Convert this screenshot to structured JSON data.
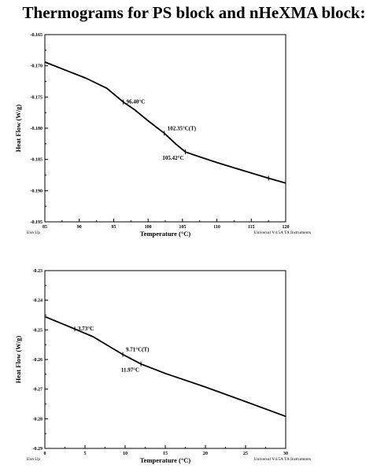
{
  "page_title": "Thermograms for PS block and nHeXMA block:",
  "chart_data": [
    {
      "type": "line",
      "title": "",
      "xlabel": "Temperature (°C)",
      "ylabel": "Heat Flow (W/g)",
      "xlim": [
        85,
        120
      ],
      "ylim": [
        -0.195,
        -0.165
      ],
      "x_ticks": [
        "85",
        "90",
        "95",
        "100",
        "105",
        "110",
        "115",
        "120"
      ],
      "y_ticks": [
        "-0.165",
        "-0.170",
        "-0.175",
        "-0.180",
        "-0.185",
        "-0.190",
        "-0.195"
      ],
      "grid": false,
      "corner_left": "Exo Up",
      "corner_right": "Universal V4.5A TA Instruments",
      "series": [
        {
          "x": [
            85,
            88,
            91,
            94,
            96.4,
            98,
            100,
            102.35,
            104,
            105.42,
            107,
            110,
            113,
            117.5,
            120
          ],
          "y": [
            -0.1694,
            -0.1707,
            -0.172,
            -0.1736,
            -0.1758,
            -0.177,
            -0.1788,
            -0.1808,
            -0.1825,
            -0.1838,
            -0.1844,
            -0.1855,
            -0.1865,
            -0.188,
            -0.1888
          ]
        }
      ],
      "annotations": [
        {
          "text": "96.40°C",
          "x": 96.4,
          "y": -0.1758,
          "side": "right"
        },
        {
          "text": "102.35°C(T)",
          "x": 102.35,
          "y": -0.1808,
          "side": "right-up"
        },
        {
          "text": "105.42°C",
          "x": 105.42,
          "y": -0.1838,
          "side": "left-down"
        }
      ],
      "markers": [
        {
          "x": 96.4,
          "y": -0.1758
        },
        {
          "x": 102.35,
          "y": -0.1808
        },
        {
          "x": 105.42,
          "y": -0.1838
        },
        {
          "x": 117.5,
          "y": -0.188
        }
      ]
    },
    {
      "type": "line",
      "title": "",
      "xlabel": "Temperature (°C)",
      "ylabel": "Heat Flow (W/g)",
      "xlim": [
        0,
        30
      ],
      "ylim": [
        -0.29,
        -0.23
      ],
      "x_ticks": [
        "0",
        "5",
        "10",
        "15",
        "20",
        "25",
        "30"
      ],
      "y_ticks": [
        "-0.23",
        "-0.24",
        "-0.25",
        "-0.26",
        "-0.27",
        "-0.28",
        "-0.29"
      ],
      "grid": false,
      "corner_left": "Exo Up",
      "corner_right": "Universal V4.5A TA Instruments",
      "series": [
        {
          "x": [
            0,
            3.73,
            6,
            9.71,
            11.97,
            15,
            20,
            25,
            30
          ],
          "y": [
            -0.2455,
            -0.2497,
            -0.2523,
            -0.2583,
            -0.2615,
            -0.2647,
            -0.2693,
            -0.2742,
            -0.2792
          ]
        }
      ],
      "annotations": [
        {
          "text": "3.73°C",
          "x": 3.73,
          "y": -0.2497,
          "side": "right"
        },
        {
          "text": "9.71°C(T)",
          "x": 9.71,
          "y": -0.2583,
          "side": "right-up"
        },
        {
          "text": "11.97°C",
          "x": 11.97,
          "y": -0.2615,
          "side": "left-down"
        }
      ],
      "markers": [
        {
          "x": 3.73,
          "y": -0.2497
        },
        {
          "x": 9.71,
          "y": -0.2583
        },
        {
          "x": 11.97,
          "y": -0.2615
        }
      ]
    }
  ]
}
